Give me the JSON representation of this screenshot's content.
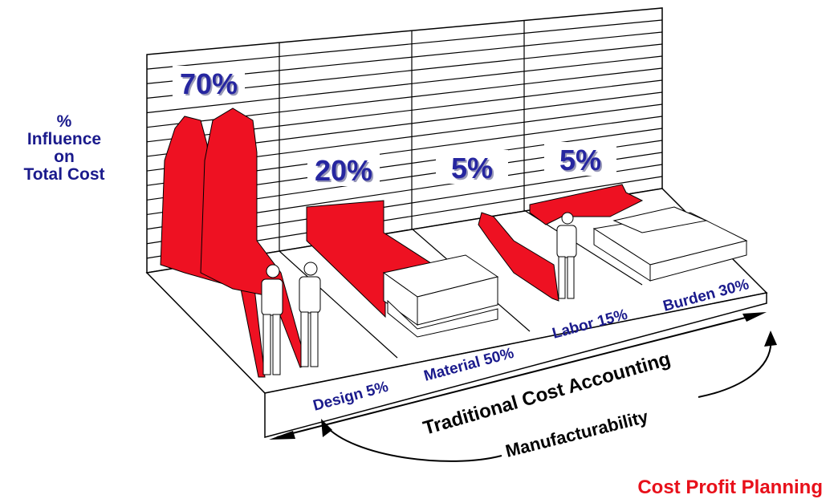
{
  "y_label": [
    "%",
    "Influence",
    "on",
    "Total Cost"
  ],
  "influence": [
    "70%",
    "20%",
    "5%",
    "5%"
  ],
  "floor_labels": [
    "Design 5%",
    "Material 50%",
    "Labor 15%",
    "Burden 30%"
  ],
  "arrows": {
    "traditional": "Traditional Cost Accounting",
    "manufacturability": "Manufacturability"
  },
  "footer": "Cost Profit Planning"
}
